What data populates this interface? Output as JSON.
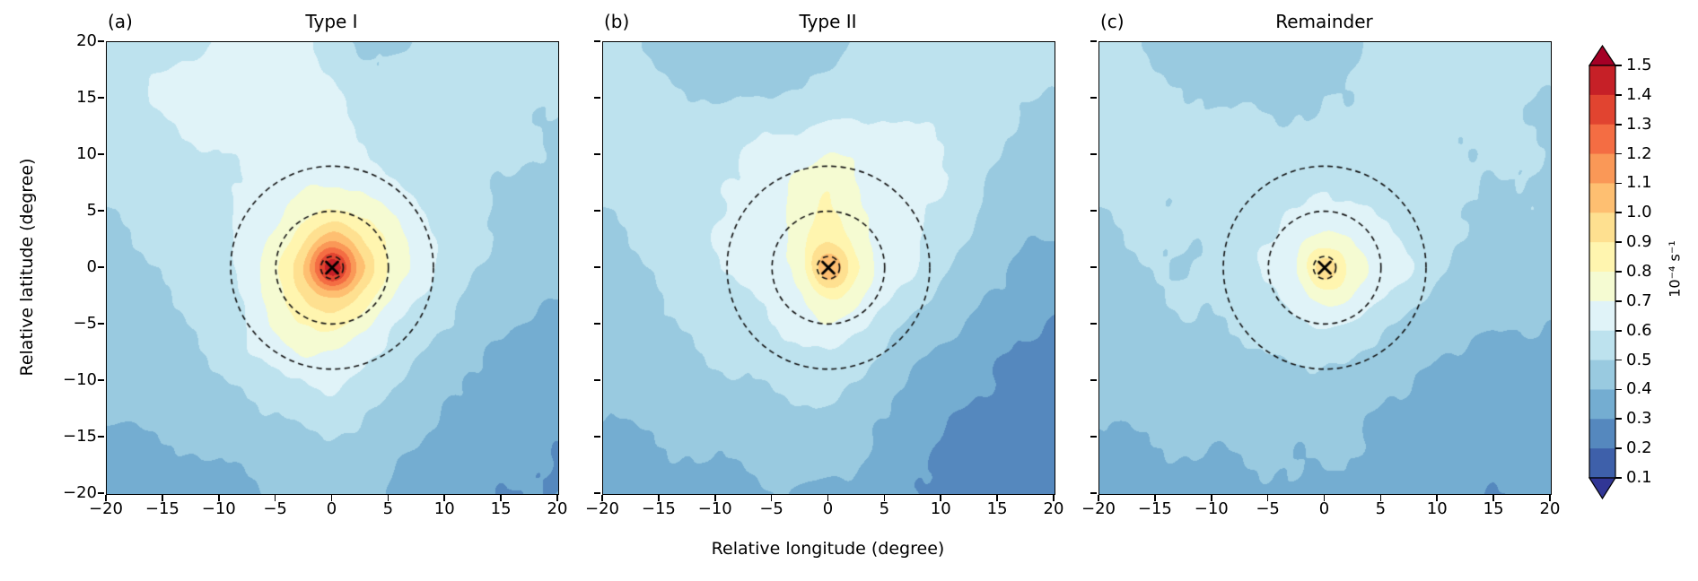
{
  "figure": {
    "panels": [
      {
        "letter": "(a)",
        "title": "Type I"
      },
      {
        "letter": "(b)",
        "title": "Type II"
      },
      {
        "letter": "(c)",
        "title": "Remainder"
      }
    ],
    "xlabel": "Relative longitude (degree)",
    "ylabel": "Relative latitude (degree)",
    "x_ticks": [
      "−20",
      "−15",
      "−10",
      "−5",
      "0",
      "5",
      "10",
      "15",
      "20"
    ],
    "y_ticks": [
      "20",
      "15",
      "10",
      "5",
      "0",
      "−5",
      "−10",
      "−15",
      "−20"
    ],
    "colorbar": {
      "ticks": [
        "1.5",
        "1.4",
        "1.3",
        "1.2",
        "1.1",
        "1.0",
        "0.9",
        "0.8",
        "0.7",
        "0.6",
        "0.5",
        "0.4",
        "0.3",
        "0.2",
        "0.1"
      ],
      "unit": "10⁻⁴ s⁻¹"
    }
  },
  "chart_data": {
    "type": "filled_contour",
    "colormap": "RdYlBu_r",
    "units": "10⁻⁴ s⁻¹",
    "levels": [
      0.1,
      0.2,
      0.3,
      0.4,
      0.5,
      0.6,
      0.7,
      0.8,
      0.9,
      1.0,
      1.1,
      1.2,
      1.3,
      1.4,
      1.5
    ],
    "extend": "both",
    "band_colors": [
      "#313695",
      "#3e60aa",
      "#5588be",
      "#74add1",
      "#99cae0",
      "#bde2ee",
      "#e0f3f8",
      "#f5fbd2",
      "#fff5af",
      "#fee090",
      "#febf71",
      "#fa9857",
      "#f46d43",
      "#e14430",
      "#c62027",
      "#a50026"
    ],
    "x_range": [
      -20,
      20
    ],
    "y_range": [
      -20,
      20
    ],
    "xlabel": "Relative longitude (degree)",
    "ylabel": "Relative latitude (degree)",
    "grid_x": [
      -20,
      -17.5,
      -15,
      -12.5,
      -10,
      -7.5,
      -5,
      -2.5,
      0,
      2.5,
      5,
      7.5,
      10,
      12.5,
      15,
      17.5,
      20
    ],
    "grid_y": [
      20,
      17.5,
      15,
      12.5,
      10,
      7.5,
      5,
      2.5,
      0,
      -2.5,
      -5,
      -7.5,
      -10,
      -12.5,
      -15,
      -17.5,
      -20
    ],
    "overlays": {
      "dashed_circle_radii_deg": [
        1,
        5,
        9
      ],
      "center_marker": "x",
      "marker_position_deg": [
        0,
        0
      ]
    },
    "panels": [
      {
        "label": "(a)",
        "title": "Type I",
        "peak_value": 1.46,
        "values": [
          [
            0.54,
            0.55,
            0.56,
            0.58,
            0.6,
            0.62,
            0.63,
            0.62,
            0.55,
            0.5,
            0.48,
            0.5,
            0.52,
            0.53,
            0.53,
            0.52,
            0.51
          ],
          [
            0.55,
            0.57,
            0.6,
            0.62,
            0.63,
            0.64,
            0.63,
            0.62,
            0.58,
            0.52,
            0.5,
            0.52,
            0.53,
            0.54,
            0.54,
            0.53,
            0.52
          ],
          [
            0.54,
            0.57,
            0.62,
            0.63,
            0.62,
            0.63,
            0.64,
            0.63,
            0.62,
            0.56,
            0.52,
            0.53,
            0.54,
            0.54,
            0.53,
            0.52,
            0.51
          ],
          [
            0.53,
            0.55,
            0.58,
            0.62,
            0.63,
            0.62,
            0.63,
            0.64,
            0.63,
            0.58,
            0.54,
            0.53,
            0.53,
            0.53,
            0.52,
            0.51,
            0.5
          ],
          [
            0.52,
            0.53,
            0.55,
            0.57,
            0.6,
            0.62,
            0.63,
            0.64,
            0.64,
            0.6,
            0.56,
            0.54,
            0.53,
            0.52,
            0.51,
            0.5,
            0.49
          ],
          [
            0.51,
            0.52,
            0.53,
            0.55,
            0.58,
            0.62,
            0.65,
            0.68,
            0.7,
            0.67,
            0.62,
            0.57,
            0.54,
            0.52,
            0.5,
            0.48,
            0.47
          ],
          [
            0.5,
            0.51,
            0.52,
            0.54,
            0.57,
            0.62,
            0.68,
            0.76,
            0.82,
            0.78,
            0.7,
            0.62,
            0.56,
            0.52,
            0.49,
            0.47,
            0.46
          ],
          [
            0.49,
            0.5,
            0.51,
            0.53,
            0.57,
            0.64,
            0.74,
            0.88,
            1.08,
            0.92,
            0.78,
            0.66,
            0.58,
            0.52,
            0.48,
            0.46,
            0.44
          ],
          [
            0.48,
            0.49,
            0.5,
            0.52,
            0.56,
            0.64,
            0.78,
            1.02,
            1.46,
            1.05,
            0.8,
            0.66,
            0.57,
            0.51,
            0.47,
            0.44,
            0.42
          ],
          [
            0.47,
            0.48,
            0.49,
            0.51,
            0.55,
            0.63,
            0.76,
            0.92,
            1.02,
            0.88,
            0.72,
            0.61,
            0.54,
            0.49,
            0.45,
            0.42,
            0.4
          ],
          [
            0.46,
            0.47,
            0.48,
            0.5,
            0.54,
            0.61,
            0.72,
            0.8,
            0.84,
            0.74,
            0.63,
            0.56,
            0.5,
            0.46,
            0.42,
            0.39,
            0.37
          ],
          [
            0.45,
            0.46,
            0.47,
            0.49,
            0.52,
            0.6,
            0.64,
            0.71,
            0.7,
            0.64,
            0.57,
            0.51,
            0.46,
            0.42,
            0.39,
            0.36,
            0.34
          ],
          [
            0.44,
            0.45,
            0.46,
            0.47,
            0.49,
            0.52,
            0.58,
            0.6,
            0.62,
            0.58,
            0.52,
            0.47,
            0.43,
            0.39,
            0.36,
            0.34,
            0.33
          ],
          [
            0.42,
            0.43,
            0.44,
            0.45,
            0.46,
            0.48,
            0.51,
            0.54,
            0.56,
            0.53,
            0.48,
            0.44,
            0.4,
            0.37,
            0.34,
            0.33,
            0.32
          ],
          [
            0.38,
            0.39,
            0.4,
            0.42,
            0.43,
            0.45,
            0.47,
            0.49,
            0.5,
            0.48,
            0.44,
            0.41,
            0.37,
            0.35,
            0.33,
            0.32,
            0.31
          ],
          [
            0.35,
            0.36,
            0.37,
            0.38,
            0.4,
            0.42,
            0.44,
            0.46,
            0.46,
            0.45,
            0.42,
            0.38,
            0.35,
            0.33,
            0.32,
            0.31,
            0.3
          ],
          [
            0.33,
            0.34,
            0.35,
            0.36,
            0.37,
            0.39,
            0.41,
            0.43,
            0.44,
            0.43,
            0.4,
            0.36,
            0.34,
            0.32,
            0.31,
            0.3,
            0.3
          ]
        ]
      },
      {
        "label": "(b)",
        "title": "Type II",
        "peak_value": 1.08,
        "values": [
          [
            0.53,
            0.51,
            0.48,
            0.46,
            0.45,
            0.45,
            0.46,
            0.47,
            0.48,
            0.52,
            0.53,
            0.53,
            0.53,
            0.53,
            0.52,
            0.52,
            0.51
          ],
          [
            0.54,
            0.53,
            0.5,
            0.47,
            0.46,
            0.46,
            0.47,
            0.48,
            0.5,
            0.53,
            0.54,
            0.54,
            0.54,
            0.53,
            0.53,
            0.52,
            0.51
          ],
          [
            0.54,
            0.54,
            0.53,
            0.51,
            0.5,
            0.5,
            0.51,
            0.52,
            0.54,
            0.55,
            0.56,
            0.55,
            0.54,
            0.53,
            0.52,
            0.51,
            0.5
          ],
          [
            0.53,
            0.54,
            0.55,
            0.55,
            0.56,
            0.57,
            0.58,
            0.6,
            0.62,
            0.62,
            0.61,
            0.6,
            0.58,
            0.54,
            0.51,
            0.49,
            0.48
          ],
          [
            0.52,
            0.53,
            0.55,
            0.57,
            0.59,
            0.61,
            0.63,
            0.66,
            0.7,
            0.68,
            0.63,
            0.62,
            0.6,
            0.55,
            0.5,
            0.47,
            0.45
          ],
          [
            0.51,
            0.52,
            0.54,
            0.56,
            0.59,
            0.62,
            0.66,
            0.72,
            0.8,
            0.7,
            0.64,
            0.62,
            0.6,
            0.54,
            0.48,
            0.45,
            0.43
          ],
          [
            0.5,
            0.51,
            0.53,
            0.55,
            0.58,
            0.62,
            0.66,
            0.74,
            0.82,
            0.72,
            0.64,
            0.62,
            0.58,
            0.52,
            0.46,
            0.43,
            0.42
          ],
          [
            0.49,
            0.5,
            0.52,
            0.56,
            0.61,
            0.63,
            0.66,
            0.76,
            0.88,
            0.76,
            0.66,
            0.62,
            0.56,
            0.49,
            0.44,
            0.41,
            0.4
          ],
          [
            0.48,
            0.49,
            0.51,
            0.55,
            0.6,
            0.62,
            0.66,
            0.76,
            1.08,
            0.82,
            0.66,
            0.6,
            0.52,
            0.46,
            0.42,
            0.38,
            0.36
          ],
          [
            0.47,
            0.48,
            0.5,
            0.52,
            0.55,
            0.58,
            0.62,
            0.7,
            0.82,
            0.72,
            0.62,
            0.55,
            0.48,
            0.43,
            0.39,
            0.35,
            0.33
          ],
          [
            0.46,
            0.47,
            0.49,
            0.51,
            0.53,
            0.56,
            0.59,
            0.63,
            0.7,
            0.63,
            0.55,
            0.48,
            0.43,
            0.39,
            0.35,
            0.32,
            0.3
          ],
          [
            0.44,
            0.46,
            0.47,
            0.49,
            0.51,
            0.53,
            0.56,
            0.58,
            0.6,
            0.55,
            0.48,
            0.43,
            0.38,
            0.35,
            0.32,
            0.29,
            0.27
          ],
          [
            0.43,
            0.44,
            0.45,
            0.47,
            0.48,
            0.5,
            0.52,
            0.53,
            0.54,
            0.5,
            0.44,
            0.39,
            0.35,
            0.32,
            0.29,
            0.27,
            0.25
          ],
          [
            0.41,
            0.42,
            0.43,
            0.44,
            0.45,
            0.47,
            0.48,
            0.49,
            0.49,
            0.46,
            0.41,
            0.36,
            0.32,
            0.29,
            0.27,
            0.25,
            0.24
          ],
          [
            0.38,
            0.39,
            0.4,
            0.41,
            0.42,
            0.44,
            0.45,
            0.46,
            0.46,
            0.43,
            0.38,
            0.34,
            0.3,
            0.27,
            0.25,
            0.24,
            0.23
          ],
          [
            0.36,
            0.37,
            0.38,
            0.39,
            0.4,
            0.41,
            0.42,
            0.42,
            0.42,
            0.4,
            0.36,
            0.32,
            0.28,
            0.26,
            0.24,
            0.23,
            0.22
          ],
          [
            0.34,
            0.35,
            0.36,
            0.37,
            0.38,
            0.38,
            0.39,
            0.39,
            0.39,
            0.38,
            0.35,
            0.31,
            0.27,
            0.25,
            0.23,
            0.22,
            0.22
          ]
        ]
      },
      {
        "label": "(c)",
        "title": "Remainder",
        "peak_value": 0.95,
        "values": [
          [
            0.54,
            0.52,
            0.49,
            0.47,
            0.46,
            0.46,
            0.45,
            0.46,
            0.47,
            0.49,
            0.52,
            0.53,
            0.53,
            0.53,
            0.52,
            0.52,
            0.51
          ],
          [
            0.54,
            0.53,
            0.5,
            0.48,
            0.47,
            0.46,
            0.46,
            0.46,
            0.48,
            0.5,
            0.53,
            0.53,
            0.53,
            0.53,
            0.52,
            0.51,
            0.51
          ],
          [
            0.53,
            0.53,
            0.52,
            0.51,
            0.5,
            0.49,
            0.48,
            0.48,
            0.49,
            0.51,
            0.53,
            0.53,
            0.53,
            0.52,
            0.52,
            0.51,
            0.5
          ],
          [
            0.53,
            0.53,
            0.53,
            0.53,
            0.52,
            0.52,
            0.51,
            0.51,
            0.52,
            0.52,
            0.53,
            0.53,
            0.52,
            0.52,
            0.51,
            0.51,
            0.5
          ],
          [
            0.52,
            0.52,
            0.52,
            0.53,
            0.53,
            0.53,
            0.53,
            0.54,
            0.55,
            0.54,
            0.53,
            0.53,
            0.52,
            0.51,
            0.51,
            0.5,
            0.5
          ],
          [
            0.51,
            0.51,
            0.52,
            0.52,
            0.53,
            0.53,
            0.54,
            0.56,
            0.6,
            0.57,
            0.56,
            0.57,
            0.52,
            0.51,
            0.5,
            0.5,
            0.49
          ],
          [
            0.5,
            0.51,
            0.51,
            0.52,
            0.52,
            0.54,
            0.57,
            0.61,
            0.64,
            0.62,
            0.58,
            0.55,
            0.52,
            0.5,
            0.49,
            0.49,
            0.48
          ],
          [
            0.49,
            0.5,
            0.5,
            0.51,
            0.52,
            0.58,
            0.6,
            0.67,
            0.73,
            0.7,
            0.64,
            0.58,
            0.53,
            0.49,
            0.48,
            0.47,
            0.47
          ],
          [
            0.48,
            0.49,
            0.5,
            0.5,
            0.52,
            0.56,
            0.62,
            0.71,
            0.95,
            0.76,
            0.68,
            0.6,
            0.52,
            0.48,
            0.46,
            0.45,
            0.45
          ],
          [
            0.47,
            0.48,
            0.49,
            0.5,
            0.51,
            0.54,
            0.58,
            0.66,
            0.75,
            0.69,
            0.61,
            0.54,
            0.48,
            0.45,
            0.43,
            0.43,
            0.43
          ],
          [
            0.46,
            0.47,
            0.48,
            0.49,
            0.5,
            0.52,
            0.54,
            0.58,
            0.62,
            0.58,
            0.53,
            0.48,
            0.44,
            0.42,
            0.41,
            0.41,
            0.41
          ],
          [
            0.44,
            0.45,
            0.46,
            0.47,
            0.48,
            0.49,
            0.5,
            0.52,
            0.54,
            0.51,
            0.47,
            0.44,
            0.41,
            0.39,
            0.38,
            0.38,
            0.38
          ],
          [
            0.43,
            0.44,
            0.45,
            0.45,
            0.46,
            0.46,
            0.47,
            0.47,
            0.48,
            0.46,
            0.43,
            0.41,
            0.38,
            0.37,
            0.36,
            0.36,
            0.36
          ],
          [
            0.41,
            0.42,
            0.42,
            0.43,
            0.43,
            0.44,
            0.44,
            0.44,
            0.44,
            0.43,
            0.4,
            0.38,
            0.36,
            0.35,
            0.34,
            0.34,
            0.34
          ],
          [
            0.39,
            0.4,
            0.4,
            0.41,
            0.41,
            0.41,
            0.42,
            0.42,
            0.42,
            0.41,
            0.38,
            0.36,
            0.34,
            0.33,
            0.33,
            0.33,
            0.33
          ],
          [
            0.37,
            0.38,
            0.38,
            0.39,
            0.39,
            0.4,
            0.4,
            0.4,
            0.4,
            0.39,
            0.37,
            0.35,
            0.33,
            0.32,
            0.32,
            0.32,
            0.32
          ],
          [
            0.36,
            0.36,
            0.37,
            0.37,
            0.38,
            0.38,
            0.38,
            0.39,
            0.39,
            0.38,
            0.36,
            0.34,
            0.32,
            0.31,
            0.31,
            0.31,
            0.31
          ]
        ]
      }
    ]
  }
}
